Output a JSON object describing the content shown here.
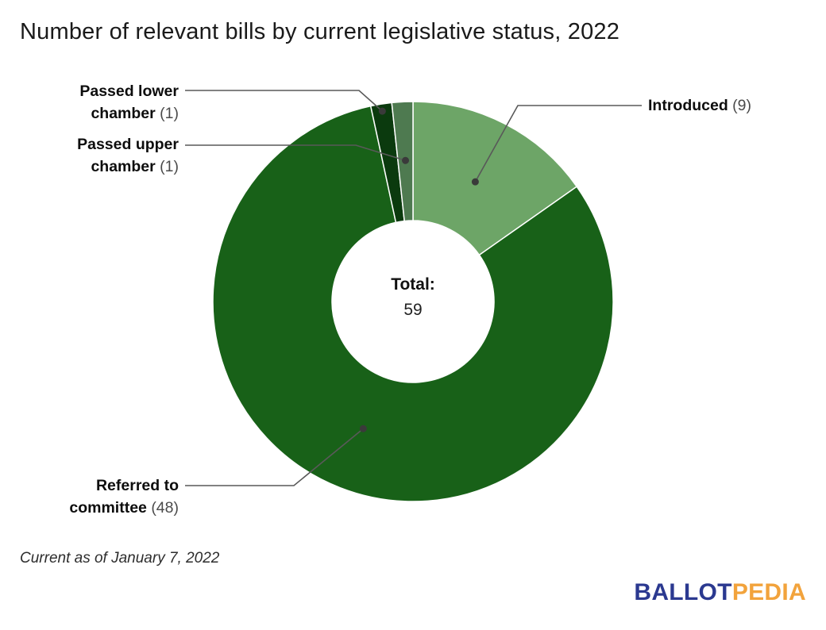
{
  "title": "Number of relevant bills by current legislative status, 2022",
  "chart_data": {
    "type": "pie",
    "subtype": "donut",
    "title": "Number of relevant bills by current legislative status, 2022",
    "direction": "clockwise",
    "start_angle_deg": 0,
    "total": 59,
    "slices": [
      {
        "label": "Introduced",
        "value": 9,
        "color": "#6da567"
      },
      {
        "label": "Referred to committee",
        "value": 48,
        "color": "#186118"
      },
      {
        "label": "Passed lower chamber",
        "value": 1,
        "color": "#0b3a0e"
      },
      {
        "label": "Passed upper chamber",
        "value": 1,
        "color": "#4e7a50"
      }
    ],
    "center_text": [
      "Total:",
      "59"
    ],
    "legend_position": "callout-labels"
  },
  "annotations": {
    "introduced": {
      "label": "Introduced",
      "count": "(9)"
    },
    "passed_lower": {
      "label": "Passed lower chamber",
      "count": "(1)"
    },
    "passed_upper": {
      "label": "Passed upper chamber",
      "count": "(1)"
    },
    "referred": {
      "label": "Referred to committee",
      "count": "(48)"
    }
  },
  "center": {
    "line1": "Total:",
    "line2": "59"
  },
  "footnote": "Current as of January 7, 2022",
  "brand": {
    "part1": "BALLOT",
    "part2": "PEDIA",
    "part1_color": "#2b3990",
    "part2_color": "#f2a33c"
  }
}
